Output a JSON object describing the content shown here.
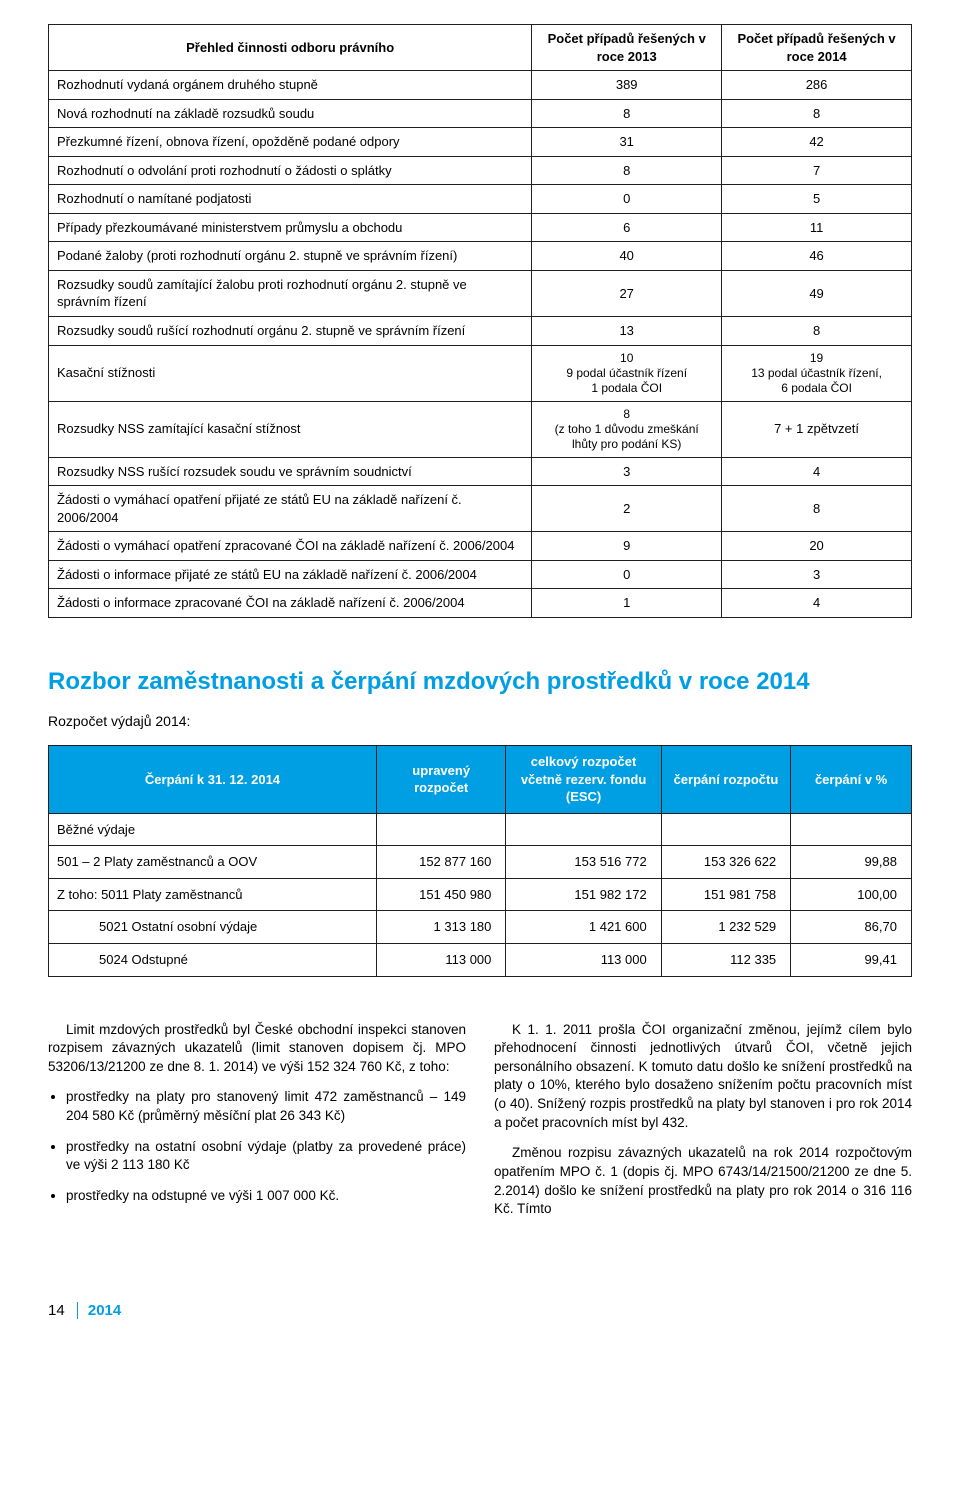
{
  "table1": {
    "headers": {
      "c0": "Přehled činnosti odboru právního",
      "c1": "Počet případů řešených v roce 2013",
      "c2": "Počet případů řešených v roce 2014"
    },
    "rows": [
      {
        "label": "Rozhodnutí vydaná orgánem druhého stupně",
        "v2013": "389",
        "v2014": "286"
      },
      {
        "label": "Nová rozhodnutí na základě rozsudků soudu",
        "v2013": "8",
        "v2014": "8"
      },
      {
        "label": "Přezkumné řízení, obnova řízení, opožděně podané odpory",
        "v2013": "31",
        "v2014": "42"
      },
      {
        "label": "Rozhodnutí o odvolání proti rozhodnutí o žádosti o splátky",
        "v2013": "8",
        "v2014": "7"
      },
      {
        "label": "Rozhodnutí o namítané podjatosti",
        "v2013": "0",
        "v2014": "5"
      },
      {
        "label": "Případy přezkoumávané ministerstvem průmyslu a obchodu",
        "v2013": "6",
        "v2014": "11"
      },
      {
        "label": "Podané žaloby (proti rozhodnutí orgánu 2. stupně ve správním řízení)",
        "v2013": "40",
        "v2014": "46"
      },
      {
        "label": "Rozsudky soudů zamítající žalobu proti rozhodnutí orgánu 2. stupně ve správním řízení",
        "v2013": "27",
        "v2014": "49"
      },
      {
        "label": "Rozsudky soudů rušící rozhodnutí orgánu 2. stupně ve správním řízení",
        "v2013": "13",
        "v2014": "8"
      },
      {
        "label": "Kasační stížnosti",
        "v2013_lines": [
          "10",
          "9 podal účastník řízení",
          "1 podala ČOI"
        ],
        "v2014_lines": [
          "19",
          "13 podal účastník řízení,",
          "6 podala ČOI"
        ]
      },
      {
        "label": "Rozsudky NSS zamítající kasační stížnost",
        "v2013_lines": [
          "8",
          "(z toho 1 důvodu zmeškání",
          "lhůty pro podání KS)"
        ],
        "v2014": "7 + 1 zpětvzetí"
      },
      {
        "label": "Rozsudky NSS rušící rozsudek soudu ve správním soudnictví",
        "v2013": "3",
        "v2014": "4"
      },
      {
        "label": "Žádosti o vymáhací opatření přijaté ze států EU na základě nařízení č. 2006/2004",
        "v2013": "2",
        "v2014": "8"
      },
      {
        "label": "Žádosti o vymáhací opatření zpracované ČOI na základě nařízení č. 2006/2004",
        "v2013": "9",
        "v2014": "20"
      },
      {
        "label": "Žádosti o informace přijaté ze států EU na základě nařízení č. 2006/2004",
        "v2013": "0",
        "v2014": "3"
      },
      {
        "label": "Žádosti o informace zpracované ČOI na základě nařízení č. 2006/2004",
        "v2013": "1",
        "v2014": "4"
      }
    ]
  },
  "section_title": "Rozbor zaměstnanosti a čerpání mzdových prostředků v roce 2014",
  "budget_sub": "Rozpočet výdajů 2014:",
  "table2": {
    "headers": {
      "c0": "Čerpání k 31. 12. 2014",
      "c1": "upravený rozpočet",
      "c2": "celkový rozpočet včetně rezerv. fondu (ESC)",
      "c3": "čerpání rozpočtu",
      "c4": "čerpání v %"
    },
    "rows": [
      {
        "label": "Běžné výdaje",
        "v1": "",
        "v2": "",
        "v3": "",
        "v4": "",
        "indent": 0
      },
      {
        "label": "501 – 2 Platy zaměstnanců a OOV",
        "v1": "152 877 160",
        "v2": "153 516 772",
        "v3": "153 326 622",
        "v4": "99,88",
        "indent": 0
      },
      {
        "label": "Z toho: 5011 Platy zaměstnanců",
        "v1": "151 450 980",
        "v2": "151 982 172",
        "v3": "151 981 758",
        "v4": "100,00",
        "indent": 0
      },
      {
        "label": "5021 Ostatní osobní výdaje",
        "v1": "1 313 180",
        "v2": "1 421 600",
        "v3": "1 232 529",
        "v4": "86,70",
        "indent": 2
      },
      {
        "label": "5024 Odstupné",
        "v1": "113 000",
        "v2": "113 000",
        "v3": "112 335",
        "v4": "99,41",
        "indent": 2
      }
    ]
  },
  "body": {
    "left": {
      "p1": "Limit mzdových prostředků byl České obchodní inspekci stanoven rozpisem závazných ukazatelů (limit stanoven dopisem čj. MPO 53206/13/21200 ze dne 8. 1. 2014) ve výši 152 324 760 Kč, z toho:",
      "b1": "prostředky na platy pro stanovený limit 472 zaměstnanců – 149 204 580 Kč (průměrný měsíční plat 26 343 Kč)",
      "b2": "prostředky na ostatní osobní výdaje (platby za provedené práce) ve výši 2 113 180 Kč",
      "b3": "prostředky na odstupné ve výši 1 007 000 Kč."
    },
    "right": {
      "p1": "K 1. 1. 2011 prošla ČOI organizační změnou, jejímž cílem bylo přehodnocení činnosti jednotlivých útvarů ČOI, včetně jejich personálního obsazení. K tomuto datu došlo ke snížení prostředků na platy o 10%, kterého bylo dosaženo snížením počtu pracovních míst (o 40). Snížený rozpis prostředků na platy byl stanoven i pro rok 2014 a počet pracovních míst byl 432.",
      "p2": "Změnou rozpisu závazných ukazatelů na rok 2014 rozpočtovým opatřením MPO č. 1 (dopis čj. MPO 6743/14/21500/21200 ze dne 5. 2.2014) došlo ke snížení prostředků na platy pro rok 2014 o 316 116 Kč. Tímto"
    }
  },
  "footer": {
    "page": "14",
    "year": "2014"
  },
  "colors": {
    "accent": "#009fe3",
    "border": "#231f20",
    "text": "#000000",
    "bg": "#ffffff"
  }
}
